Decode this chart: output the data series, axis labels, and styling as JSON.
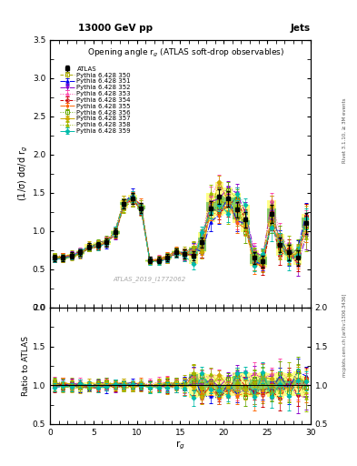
{
  "title_top": "13000 GeV pp",
  "title_right": "Jets",
  "plot_title": "Opening angle r$_g$ (ATLAS soft-drop observables)",
  "xlabel": "r$_g$",
  "ylabel_main": "(1/σ) dσ/d r$_g$",
  "ylabel_ratio": "Ratio to ATLAS",
  "watermark": "ATLAS_2019_I1772062",
  "rivet_label": "Rivet 3.1.10, ≥ 3M events",
  "arxiv_label": "[arXiv:1306.3436]",
  "mcplots_label": "mcplots.cern.ch",
  "xlim": [
    0,
    30
  ],
  "ylim_main": [
    0,
    3.5
  ],
  "ylim_ratio": [
    0.5,
    2.0
  ],
  "x_data": [
    0.5,
    1.5,
    2.5,
    3.5,
    4.5,
    5.5,
    6.5,
    7.5,
    8.5,
    9.5,
    10.5,
    11.5,
    12.5,
    13.5,
    14.5,
    15.5,
    16.5,
    17.5,
    18.5,
    19.5,
    20.5,
    21.5,
    22.5,
    23.5,
    24.5,
    25.5,
    26.5,
    27.5,
    28.5,
    29.5
  ],
  "atlas_y": [
    0.65,
    0.65,
    0.68,
    0.72,
    0.8,
    0.82,
    0.85,
    0.98,
    1.35,
    1.43,
    1.3,
    0.62,
    0.62,
    0.65,
    0.72,
    0.7,
    0.68,
    0.85,
    1.3,
    1.45,
    1.42,
    1.28,
    1.15,
    0.65,
    0.6,
    1.22,
    0.82,
    0.72,
    0.65,
    1.1
  ],
  "atlas_ye": [
    0.04,
    0.04,
    0.04,
    0.04,
    0.04,
    0.04,
    0.05,
    0.05,
    0.06,
    0.07,
    0.07,
    0.04,
    0.04,
    0.05,
    0.05,
    0.06,
    0.06,
    0.07,
    0.09,
    0.1,
    0.1,
    0.1,
    0.1,
    0.08,
    0.08,
    0.12,
    0.1,
    0.1,
    0.1,
    0.14
  ],
  "series": [
    {
      "label": "Pythia 6.428 350",
      "color": "#aaaa00",
      "marker": "s",
      "linestyle": "--",
      "fillstyle": "none"
    },
    {
      "label": "Pythia 6.428 351",
      "color": "#0000ee",
      "marker": "^",
      "linestyle": "-.",
      "fillstyle": "full"
    },
    {
      "label": "Pythia 6.428 352",
      "color": "#8800cc",
      "marker": "v",
      "linestyle": "-.",
      "fillstyle": "full"
    },
    {
      "label": "Pythia 6.428 353",
      "color": "#ff44aa",
      "marker": "^",
      "linestyle": ":",
      "fillstyle": "none"
    },
    {
      "label": "Pythia 6.428 354",
      "color": "#cc0000",
      "marker": "o",
      "linestyle": "--",
      "fillstyle": "none"
    },
    {
      "label": "Pythia 6.428 355",
      "color": "#ff6600",
      "marker": "*",
      "linestyle": "-.",
      "fillstyle": "full"
    },
    {
      "label": "Pythia 6.428 356",
      "color": "#66aa00",
      "marker": "s",
      "linestyle": ":",
      "fillstyle": "none"
    },
    {
      "label": "Pythia 6.428 357",
      "color": "#ccaa00",
      "marker": "D",
      "linestyle": "-.",
      "fillstyle": "full"
    },
    {
      "label": "Pythia 6.428 358",
      "color": "#99bb00",
      "marker": "^",
      "linestyle": ":",
      "fillstyle": "full"
    },
    {
      "label": "Pythia 6.428 359",
      "color": "#00bbaa",
      "marker": "D",
      "linestyle": "-.",
      "fillstyle": "full"
    }
  ],
  "band_color_yellow": "#ffff88",
  "band_color_green": "#88cc66",
  "background_color": "#ffffff"
}
